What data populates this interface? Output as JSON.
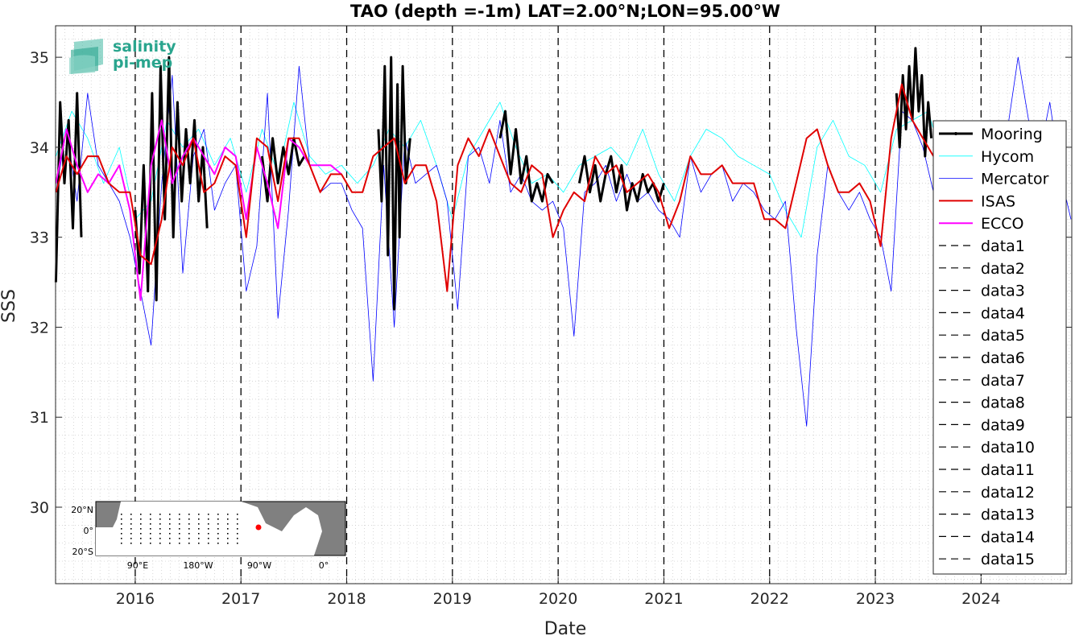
{
  "chart_data": {
    "type": "line",
    "title": "TAO (depth =-1m) LAT=2.00°N;LON=95.00°W",
    "xlabel": "Date",
    "ylabel": "SSS",
    "xlim": [
      "2015-04-01",
      "2024-11-10"
    ],
    "ylim": [
      29.15,
      35.35
    ],
    "yticks": [
      30,
      31,
      32,
      33,
      34,
      35
    ],
    "xticks": [
      "2016",
      "2017",
      "2018",
      "2019",
      "2020",
      "2021",
      "2022",
      "2023",
      "2024"
    ],
    "grid": "on (dotted, minor)",
    "legend_position": "right",
    "year_separators": [
      "2016",
      "2017",
      "2018",
      "2019",
      "2020",
      "2021",
      "2022",
      "2023",
      "2024"
    ],
    "series": [
      {
        "name": "Mooring",
        "color": "#000000",
        "style": "thick",
        "segments": [
          {
            "x": [
              2015.25,
              2015.29,
              2015.33,
              2015.37,
              2015.41,
              2015.45,
              2015.49
            ],
            "y": [
              32.5,
              34.5,
              33.6,
              34.3,
              33.1,
              34.6,
              33.0
            ]
          },
          {
            "x": [
              2016.0,
              2016.04,
              2016.08,
              2016.12,
              2016.16,
              2016.2,
              2016.24,
              2016.28,
              2016.32,
              2016.36,
              2016.4,
              2016.44,
              2016.48,
              2016.52,
              2016.56,
              2016.6,
              2016.64,
              2016.68
            ],
            "y": [
              33.3,
              32.6,
              33.8,
              32.4,
              34.6,
              32.3,
              34.9,
              33.2,
              35.0,
              33.0,
              34.5,
              33.4,
              34.2,
              33.6,
              34.3,
              33.4,
              34.0,
              33.1
            ]
          },
          {
            "x": [
              2017.2,
              2017.25,
              2017.3,
              2017.35,
              2017.4,
              2017.45,
              2017.5,
              2017.55,
              2017.6
            ],
            "y": [
              33.9,
              33.4,
              34.1,
              33.6,
              34.0,
              33.7,
              34.1,
              33.8,
              33.9
            ]
          },
          {
            "x": [
              2018.3,
              2018.33,
              2018.36,
              2018.39,
              2018.42,
              2018.45,
              2018.48,
              2018.5,
              2018.53,
              2018.56,
              2018.6
            ],
            "y": [
              34.2,
              33.4,
              34.9,
              32.8,
              35.0,
              32.2,
              34.7,
              33.0,
              34.9,
              33.6,
              34.1
            ]
          },
          {
            "x": [
              2019.45,
              2019.5,
              2019.55,
              2019.6,
              2019.65,
              2019.7,
              2019.75,
              2019.8,
              2019.85,
              2019.9,
              2019.95
            ],
            "y": [
              34.1,
              34.4,
              33.7,
              34.2,
              33.6,
              33.9,
              33.4,
              33.6,
              33.4,
              33.7,
              33.6
            ]
          },
          {
            "x": [
              2020.2,
              2020.25,
              2020.3,
              2020.35,
              2020.4,
              2020.45,
              2020.5,
              2020.55,
              2020.6,
              2020.65,
              2020.7,
              2020.75,
              2020.8,
              2020.85,
              2020.9,
              2020.95,
              2021.0
            ],
            "y": [
              33.6,
              33.9,
              33.5,
              33.8,
              33.4,
              33.7,
              33.9,
              33.5,
              33.8,
              33.3,
              33.6,
              33.4,
              33.7,
              33.5,
              33.6,
              33.4,
              33.6
            ]
          },
          {
            "x": [
              2023.2,
              2023.23,
              2023.26,
              2023.29,
              2023.32,
              2023.35,
              2023.38,
              2023.41,
              2023.44,
              2023.47,
              2023.5,
              2023.53
            ],
            "y": [
              34.6,
              34.0,
              34.8,
              34.2,
              34.9,
              34.3,
              35.1,
              34.4,
              34.8,
              33.9,
              34.5,
              34.1
            ]
          }
        ]
      },
      {
        "name": "Hycom",
        "color": "#00ffff",
        "style": "thin",
        "x": [
          2015.25,
          2015.4,
          2015.55,
          2015.7,
          2015.85,
          2016.0,
          2016.15,
          2016.3,
          2016.45,
          2016.6,
          2016.75,
          2016.9,
          2017.05,
          2017.2,
          2017.35,
          2017.5,
          2017.65,
          2017.8,
          2017.95,
          2018.1,
          2018.25,
          2018.4,
          2018.55,
          2018.7,
          2018.85,
          2019.0,
          2019.15,
          2019.3,
          2019.45,
          2019.6,
          2019.75,
          2019.9,
          2020.05,
          2020.2,
          2020.35,
          2020.5,
          2020.65,
          2020.8,
          2020.95,
          2021.1,
          2021.25,
          2021.4,
          2021.55,
          2021.7,
          2021.85,
          2022.0,
          2022.15,
          2022.3,
          2022.45,
          2022.6,
          2022.75,
          2022.9,
          2023.05,
          2023.2,
          2023.35,
          2023.5,
          2023.65,
          2023.75
        ],
        "y": [
          33.9,
          34.4,
          34.1,
          33.6,
          34.0,
          33.2,
          33.4,
          34.3,
          34.0,
          34.2,
          33.8,
          34.1,
          33.5,
          34.2,
          33.7,
          34.5,
          33.9,
          33.7,
          33.8,
          33.6,
          33.8,
          34.2,
          34.0,
          34.3,
          33.8,
          33.2,
          33.9,
          34.2,
          34.5,
          34.0,
          33.6,
          33.7,
          33.5,
          33.8,
          33.9,
          34.0,
          33.8,
          34.2,
          33.7,
          33.4,
          33.9,
          34.2,
          34.1,
          33.9,
          33.8,
          33.7,
          33.3,
          33.0,
          34.0,
          34.3,
          33.9,
          33.8,
          33.5,
          34.2,
          34.3,
          34.4,
          33.8,
          34.0
        ]
      },
      {
        "name": "Mercator",
        "color": "#0000ff",
        "style": "thin",
        "x": [
          2015.25,
          2015.35,
          2015.45,
          2015.55,
          2015.65,
          2015.75,
          2015.85,
          2015.95,
          2016.05,
          2016.15,
          2016.25,
          2016.35,
          2016.45,
          2016.55,
          2016.65,
          2016.75,
          2016.85,
          2016.95,
          2017.05,
          2017.15,
          2017.25,
          2017.35,
          2017.45,
          2017.55,
          2017.65,
          2017.75,
          2017.85,
          2017.95,
          2018.05,
          2018.15,
          2018.25,
          2018.35,
          2018.45,
          2018.55,
          2018.65,
          2018.75,
          2018.85,
          2018.95,
          2019.05,
          2019.15,
          2019.25,
          2019.35,
          2019.45,
          2019.55,
          2019.65,
          2019.75,
          2019.85,
          2019.95,
          2020.05,
          2020.15,
          2020.25,
          2020.35,
          2020.45,
          2020.55,
          2020.65,
          2020.75,
          2020.85,
          2020.95,
          2021.05,
          2021.15,
          2021.25,
          2021.35,
          2021.45,
          2021.55,
          2021.65,
          2021.75,
          2021.85,
          2021.95,
          2022.05,
          2022.15,
          2022.25,
          2022.35,
          2022.45,
          2022.55,
          2022.65,
          2022.75,
          2022.85,
          2022.95,
          2023.05,
          2023.15,
          2023.25,
          2023.35,
          2023.45,
          2023.55,
          2023.65,
          2023.75,
          2023.85,
          2023.95,
          2024.05,
          2024.15,
          2024.25,
          2024.35,
          2024.45,
          2024.55,
          2024.65,
          2024.75,
          2024.85
        ],
        "y": [
          33.5,
          34.2,
          33.4,
          34.6,
          33.8,
          33.6,
          33.4,
          33.0,
          32.4,
          31.8,
          33.6,
          34.8,
          32.6,
          33.9,
          34.2,
          33.3,
          33.6,
          33.8,
          32.4,
          32.9,
          34.6,
          32.1,
          33.3,
          34.9,
          33.8,
          33.5,
          33.6,
          33.6,
          33.3,
          33.1,
          31.4,
          33.8,
          32.0,
          34.1,
          33.6,
          33.7,
          33.8,
          33.4,
          32.2,
          33.9,
          34.0,
          33.6,
          34.3,
          33.5,
          33.7,
          33.4,
          33.3,
          33.4,
          33.1,
          31.9,
          33.5,
          33.6,
          33.8,
          33.4,
          33.7,
          33.4,
          33.5,
          33.3,
          33.2,
          33.0,
          33.9,
          33.5,
          33.7,
          33.8,
          33.4,
          33.6,
          33.5,
          33.3,
          33.2,
          33.4,
          32.0,
          30.9,
          32.8,
          33.8,
          33.5,
          33.3,
          33.5,
          33.2,
          33.0,
          32.4,
          34.4,
          34.3,
          34.0,
          33.5,
          33.8,
          33.6,
          33.7,
          33.5,
          33.9,
          33.6,
          34.2,
          35.0,
          34.3,
          33.9,
          34.5,
          33.7,
          33.2
        ]
      },
      {
        "name": "ISAS",
        "color": "#e00000",
        "style": "medium",
        "x": [
          2015.25,
          2015.35,
          2015.45,
          2015.55,
          2015.65,
          2015.75,
          2015.85,
          2015.95,
          2016.05,
          2016.15,
          2016.25,
          2016.35,
          2016.45,
          2016.55,
          2016.65,
          2016.75,
          2016.85,
          2016.95,
          2017.05,
          2017.15,
          2017.25,
          2017.35,
          2017.45,
          2017.55,
          2017.65,
          2017.75,
          2017.85,
          2017.95,
          2018.05,
          2018.15,
          2018.25,
          2018.35,
          2018.45,
          2018.55,
          2018.65,
          2018.75,
          2018.85,
          2018.95,
          2019.05,
          2019.15,
          2019.25,
          2019.35,
          2019.45,
          2019.55,
          2019.65,
          2019.75,
          2019.85,
          2019.95,
          2020.05,
          2020.15,
          2020.25,
          2020.35,
          2020.45,
          2020.55,
          2020.65,
          2020.75,
          2020.85,
          2020.95,
          2021.05,
          2021.15,
          2021.25,
          2021.35,
          2021.45,
          2021.55,
          2021.65,
          2021.75,
          2021.85,
          2021.95,
          2022.05,
          2022.15,
          2022.25,
          2022.35,
          2022.45,
          2022.55,
          2022.65,
          2022.75,
          2022.85,
          2022.95,
          2023.05,
          2023.15,
          2023.25,
          2023.35,
          2023.45,
          2023.55
        ],
        "y": [
          33.5,
          33.9,
          33.7,
          33.9,
          33.9,
          33.6,
          33.5,
          33.5,
          32.8,
          32.7,
          33.2,
          34.0,
          33.8,
          34.1,
          33.5,
          33.6,
          33.9,
          33.8,
          33.0,
          34.1,
          34.0,
          33.4,
          34.1,
          34.1,
          33.8,
          33.5,
          33.7,
          33.7,
          33.5,
          33.5,
          33.9,
          34.0,
          34.1,
          33.6,
          33.8,
          33.8,
          33.4,
          32.4,
          33.8,
          34.1,
          33.9,
          34.2,
          33.9,
          33.6,
          33.5,
          33.8,
          33.7,
          33.0,
          33.3,
          33.5,
          33.4,
          33.9,
          33.7,
          33.8,
          33.5,
          33.6,
          33.7,
          33.5,
          33.1,
          33.4,
          33.9,
          33.7,
          33.7,
          33.8,
          33.6,
          33.6,
          33.6,
          33.2,
          33.2,
          33.1,
          33.6,
          34.1,
          34.2,
          33.8,
          33.5,
          33.5,
          33.6,
          33.4,
          32.9,
          34.1,
          34.7,
          34.3,
          34.1,
          33.9
        ]
      },
      {
        "name": "ECCO",
        "color": "#ff00ff",
        "style": "medium",
        "x": [
          2015.25,
          2015.35,
          2015.45,
          2015.55,
          2015.65,
          2015.75,
          2015.85,
          2015.95,
          2016.05,
          2016.15,
          2016.25,
          2016.35,
          2016.45,
          2016.55,
          2016.65,
          2016.75,
          2016.85,
          2016.95,
          2017.05,
          2017.15,
          2017.25,
          2017.35,
          2017.45,
          2017.55,
          2017.65,
          2017.75,
          2017.85,
          2017.95
        ],
        "y": [
          33.6,
          34.2,
          33.8,
          33.5,
          33.7,
          33.6,
          33.8,
          33.3,
          32.3,
          33.8,
          34.3,
          33.6,
          33.9,
          34.1,
          33.9,
          33.7,
          34.0,
          33.9,
          33.2,
          34.0,
          33.6,
          33.1,
          34.1,
          34.0,
          33.8,
          33.8,
          33.8,
          33.7
        ]
      }
    ],
    "legend": [
      "Mooring",
      "Hycom",
      "Mercator",
      "ISAS",
      "ECCO",
      "data1",
      "data2",
      "data3",
      "data4",
      "data5",
      "data6",
      "data7",
      "data8",
      "data9",
      "data10",
      "data11",
      "data12",
      "data13",
      "data14",
      "data15"
    ]
  },
  "logo": {
    "line1": "salinity",
    "line2": "pi-mep"
  },
  "inset_map": {
    "ylabels": [
      "20°N",
      "0°",
      "20°S"
    ],
    "xlabels": [
      "90°E",
      "180°W",
      "90°W",
      "0°"
    ],
    "marker_color": "#ff0000"
  }
}
